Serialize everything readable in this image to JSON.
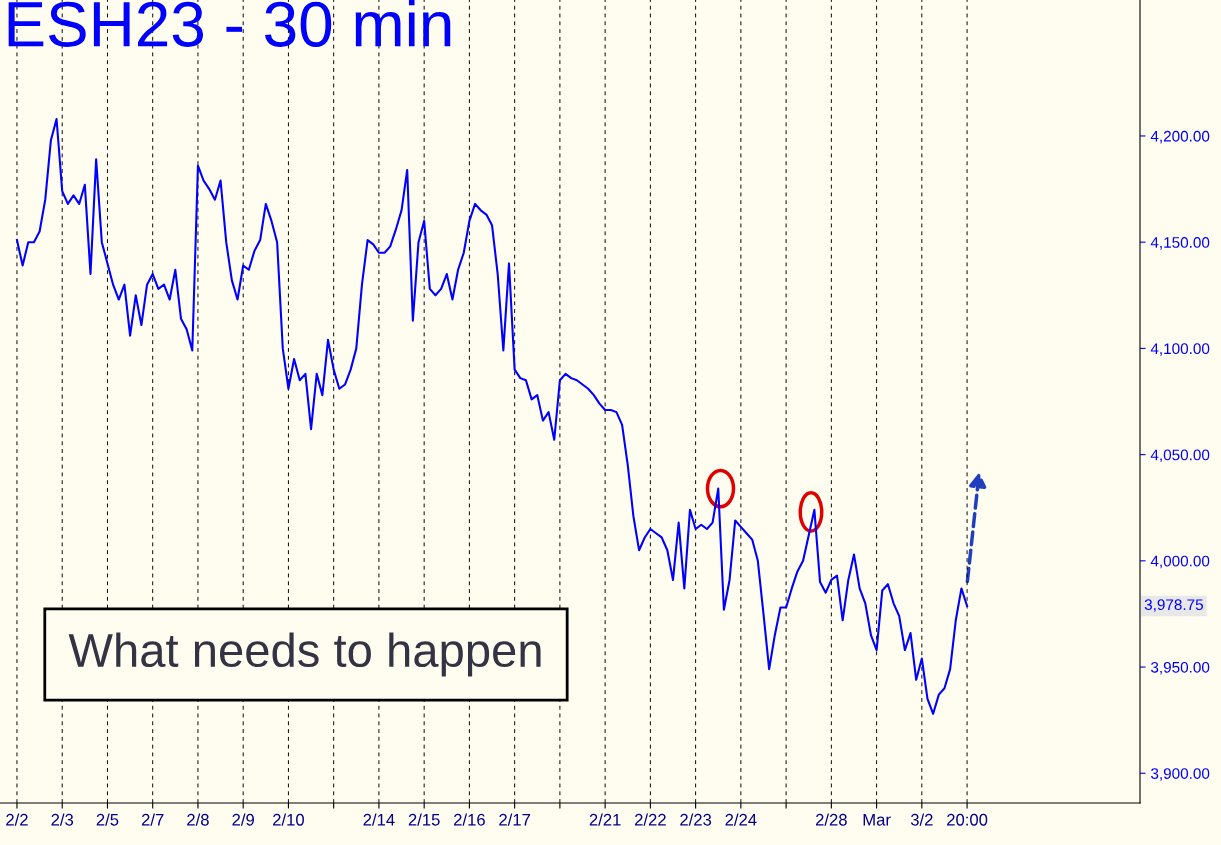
{
  "chart_data": {
    "type": "line",
    "title": "ESH23 - 30 min",
    "categories": [
      "2/2",
      null,
      null,
      null,
      null,
      null,
      null,
      null,
      "2/3",
      null,
      null,
      null,
      null,
      null,
      null,
      null,
      "2/5",
      null,
      null,
      null,
      null,
      null,
      null,
      null,
      "2/7",
      null,
      null,
      null,
      null,
      null,
      null,
      null,
      "2/8",
      null,
      null,
      null,
      null,
      null,
      null,
      null,
      "2/9",
      null,
      null,
      null,
      null,
      null,
      null,
      null,
      "2/10",
      null,
      null,
      null,
      null,
      null,
      null,
      null,
      null,
      null,
      null,
      null,
      null,
      null,
      null,
      null,
      "2/14",
      null,
      null,
      null,
      null,
      null,
      null,
      null,
      "2/15",
      null,
      null,
      null,
      null,
      null,
      null,
      null,
      "2/16",
      null,
      null,
      null,
      null,
      null,
      null,
      null,
      "2/17",
      null,
      null,
      null,
      null,
      null,
      null,
      null,
      null,
      null,
      null,
      null,
      null,
      null,
      null,
      null,
      "2/21",
      null,
      null,
      null,
      null,
      null,
      null,
      null,
      "2/22",
      null,
      null,
      null,
      null,
      null,
      null,
      null,
      "2/23",
      null,
      null,
      null,
      null,
      null,
      null,
      null,
      "2/24",
      null,
      null,
      null,
      null,
      null,
      null,
      null,
      null,
      null,
      null,
      null,
      null,
      null,
      null,
      null,
      "2/28",
      null,
      null,
      null,
      null,
      null,
      null,
      null,
      "Mar",
      null,
      null,
      null,
      null,
      null,
      null,
      null,
      "3/2",
      null,
      null,
      null,
      null,
      null,
      null,
      null,
      "20:00"
    ],
    "series": [
      {
        "color": "#0000ff",
        "values": [
          4151,
          4139,
          4150,
          4150,
          4155,
          4170,
          4198,
          4208,
          4174,
          4168,
          4172,
          4168,
          4177,
          4135,
          4189,
          4150,
          4140,
          4130,
          4123,
          4130,
          4106,
          4125,
          4111,
          4130,
          4135,
          4128,
          4130,
          4123,
          4137,
          4114,
          4109,
          4099,
          4186,
          4179,
          4175,
          4170,
          4179,
          4150,
          4132,
          4123,
          4139,
          4137,
          4146,
          4151,
          4168,
          4160,
          4150,
          4100,
          4081,
          4095,
          4085,
          4088,
          4062,
          4088,
          4078,
          4104,
          4090,
          4081,
          4083,
          4090,
          4100,
          4130,
          4151,
          4149,
          4145,
          4145,
          4148,
          4156,
          4165,
          4184,
          4113,
          4150,
          4160,
          4128,
          4125,
          4128,
          4135,
          4123,
          4137,
          4145,
          4160,
          4168,
          4165,
          4163,
          4158,
          4135,
          4099,
          4140,
          4090,
          4086,
          4085,
          4076,
          4078,
          4066,
          4070,
          4057,
          4085,
          4088,
          4086,
          4085,
          4083,
          4081,
          4078,
          4074,
          4071,
          4071,
          4070,
          4064,
          4045,
          4021,
          4005,
          4011,
          4015,
          4013,
          4011,
          4005,
          3991,
          4018,
          3987,
          4024,
          4015,
          4017,
          4015,
          4018,
          4034,
          3977,
          3991,
          4019,
          4016,
          4013,
          4010,
          4000,
          3975,
          3949,
          3965,
          3978,
          3978,
          3987,
          3995,
          4000,
          4012,
          4024,
          3990,
          3985,
          3991,
          3993,
          3972,
          3991,
          4003,
          3987,
          3980,
          3965,
          3958,
          3986,
          3989,
          3980,
          3974,
          3958,
          3966,
          3944,
          3954,
          3935,
          3928,
          3937,
          3940,
          3949,
          3972,
          3987,
          3978.75
        ]
      }
    ],
    "ylim": [
      3886,
      4264
    ],
    "yticks": [
      {
        "value": 3900,
        "label": "3,900.00"
      },
      {
        "value": 3950,
        "label": "3,950.00"
      },
      {
        "value": 4000,
        "label": "4,000.00"
      },
      {
        "value": 4050,
        "label": "4,050.00"
      },
      {
        "value": 4100,
        "label": "4,100.00"
      },
      {
        "value": 4150,
        "label": "4,150.00"
      },
      {
        "value": 4200,
        "label": "4,200.00"
      }
    ],
    "grid": "x",
    "marker": "none",
    "line_style": "solid",
    "annotations": [
      "3,978.75",
      "What needs to happen"
    ]
  }
}
